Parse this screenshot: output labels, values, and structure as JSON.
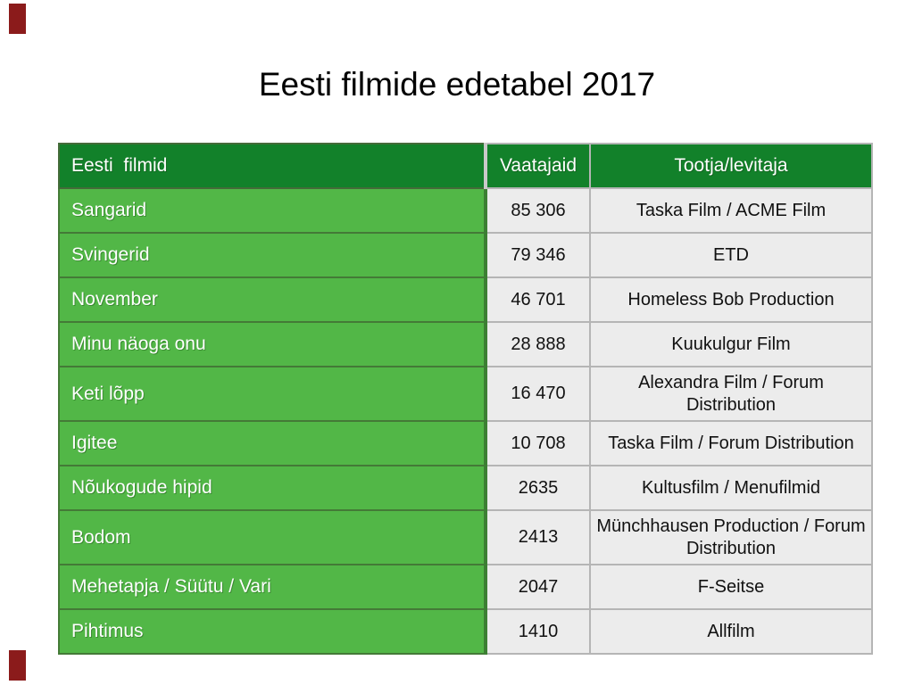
{
  "slide": {
    "title": "Eesti filmide edetabel 2017",
    "colors": {
      "header_green": "#12812a",
      "row_green": "#52b747",
      "cell_gray": "#ececec",
      "inner_border_gray": "#b5b5b5",
      "outer_border_gray": "#5a5a5a",
      "green_border": "#447a37",
      "corner_marker_red": "#8b1b1b",
      "title_text": "#000000",
      "header_text": "#ffffff"
    }
  },
  "table": {
    "headers": {
      "films": "Eesti  filmid",
      "viewers": "Vaatajaid",
      "producer": "Tootja/levitaja"
    },
    "rows": [
      {
        "film": "Sangarid",
        "viewers": "85 306",
        "producer": "Taska Film / ACME Film"
      },
      {
        "film": "Svingerid",
        "viewers": "79 346",
        "producer": "ETD"
      },
      {
        "film": "November",
        "viewers": "46 701",
        "producer": "Homeless Bob Production"
      },
      {
        "film": "Minu näoga onu",
        "viewers": "28 888",
        "producer": "Kuukulgur Film"
      },
      {
        "film": "Keti lõpp",
        "viewers": "16 470",
        "producer": "Alexandra Film / Forum Distribution"
      },
      {
        "film": "Igitee",
        "viewers": "10 708",
        "producer": "Taska Film / Forum Distribution"
      },
      {
        "film": "Nõukogude hipid",
        "viewers": "2635",
        "producer": "Kultusfilm / Menufilmid"
      },
      {
        "film": "Bodom",
        "viewers": "2413",
        "producer": "Münchhausen Production / Forum Distribution"
      },
      {
        "film": "Mehetapja / Süütu / Vari",
        "viewers": "2047",
        "producer": "F-Seitse"
      },
      {
        "film": "Pihtimus",
        "viewers": "1410",
        "producer": "Allfilm"
      }
    ]
  }
}
